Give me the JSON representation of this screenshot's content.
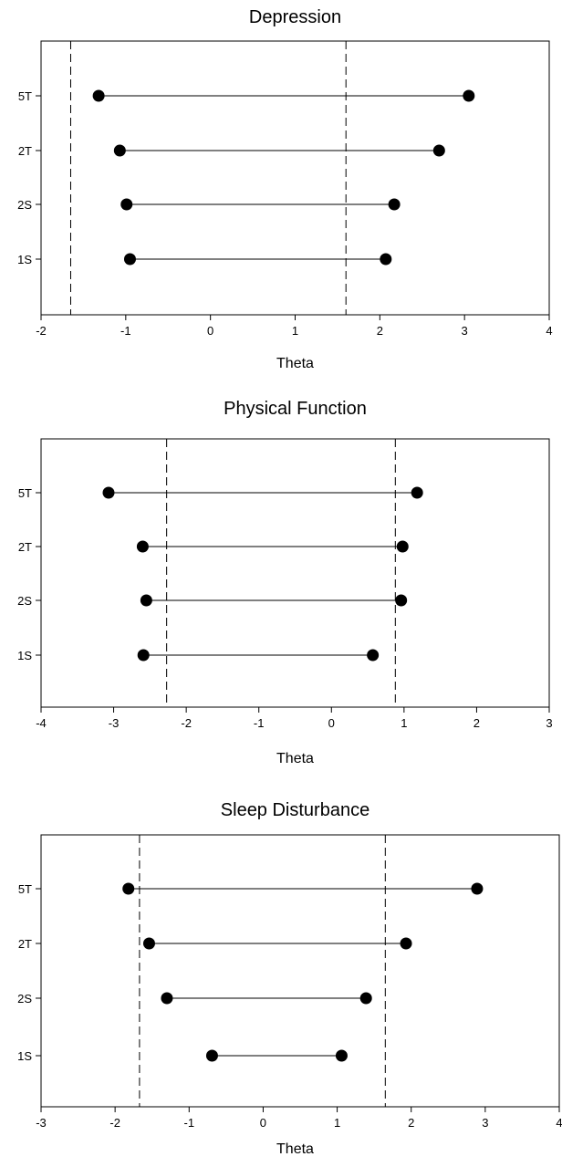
{
  "chart_data": [
    {
      "type": "dot-range",
      "title": "Depression",
      "xlabel": "Theta",
      "ylabel": "",
      "xlim": [
        -2,
        4
      ],
      "xticks": [
        -2,
        -1,
        0,
        1,
        2,
        3,
        4
      ],
      "categories": [
        "5T",
        "2T",
        "2S",
        "1S"
      ],
      "ranges": [
        {
          "label": "5T",
          "low": -1.32,
          "high": 3.05
        },
        {
          "label": "2T",
          "low": -1.07,
          "high": 2.7
        },
        {
          "label": "2S",
          "low": -0.99,
          "high": 2.17
        },
        {
          "label": "1S",
          "low": -0.95,
          "high": 2.07
        }
      ],
      "reference_lines": [
        -1.65,
        1.6
      ],
      "grid": false
    },
    {
      "type": "dot-range",
      "title": "Physical Function",
      "xlabel": "Theta",
      "ylabel": "",
      "xlim": [
        -4,
        3
      ],
      "xticks": [
        -4,
        -3,
        -2,
        -1,
        0,
        1,
        2,
        3
      ],
      "categories": [
        "5T",
        "2T",
        "2S",
        "1S"
      ],
      "ranges": [
        {
          "label": "5T",
          "low": -3.07,
          "high": 1.18
        },
        {
          "label": "2T",
          "low": -2.6,
          "high": 0.98
        },
        {
          "label": "2S",
          "low": -2.55,
          "high": 0.96
        },
        {
          "label": "1S",
          "low": -2.59,
          "high": 0.57
        }
      ],
      "reference_lines": [
        -2.27,
        0.88
      ],
      "grid": false
    },
    {
      "type": "dot-range",
      "title": "Sleep Disturbance",
      "xlabel": "Theta",
      "ylabel": "",
      "xlim": [
        -3,
        4
      ],
      "xticks": [
        -3,
        -2,
        -1,
        0,
        1,
        2,
        3,
        4
      ],
      "categories": [
        "5T",
        "2T",
        "2S",
        "1S"
      ],
      "ranges": [
        {
          "label": "5T",
          "low": -1.82,
          "high": 2.89
        },
        {
          "label": "2T",
          "low": -1.54,
          "high": 1.93
        },
        {
          "label": "2S",
          "low": -1.3,
          "high": 1.39
        },
        {
          "label": "1S",
          "low": -0.69,
          "high": 1.06
        }
      ],
      "reference_lines": [
        -1.67,
        1.65
      ],
      "grid": false
    }
  ]
}
